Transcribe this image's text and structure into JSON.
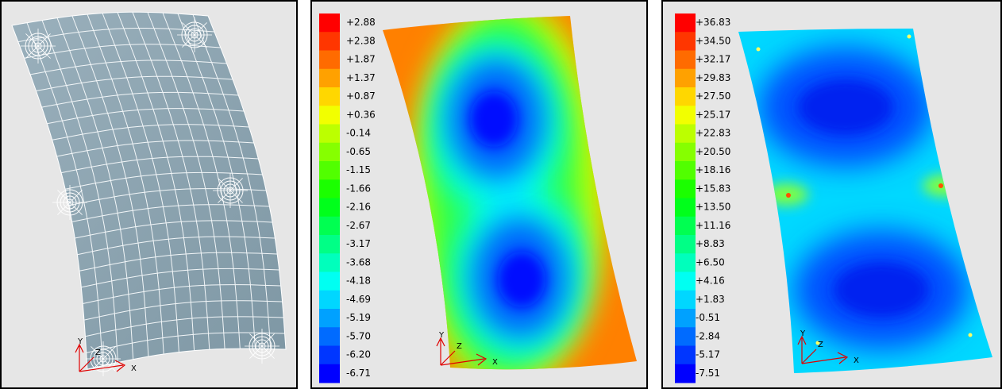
{
  "panels": [
    {
      "triad": {
        "y": "Y",
        "z": "Z",
        "x": "X"
      }
    },
    {
      "legend": [
        "+2.88",
        "+2.38",
        "+1.87",
        "+1.37",
        "+0.87",
        "+0.36",
        "-0.14",
        "-0.65",
        "-1.15",
        "-1.66",
        "-2.16",
        "-2.67",
        "-3.17",
        "-3.68",
        "-4.18",
        "-4.69",
        "-5.19",
        "-5.70",
        "-6.20",
        "-6.71"
      ],
      "triad": {
        "y": "Y",
        "z": "Z",
        "x": "X"
      }
    },
    {
      "legend": [
        "+36.83",
        "+34.50",
        "+32.17",
        "+29.83",
        "+27.50",
        "+25.17",
        "+22.83",
        "+20.50",
        "+18.16",
        "+15.83",
        "+13.50",
        "+11.16",
        "+8.83",
        "+6.50",
        "+4.16",
        "+1.83",
        "-0.51",
        "-2.84",
        "-5.17",
        "-7.51"
      ],
      "triad": {
        "y": "Y",
        "z": "Z",
        "x": "X"
      }
    }
  ]
}
